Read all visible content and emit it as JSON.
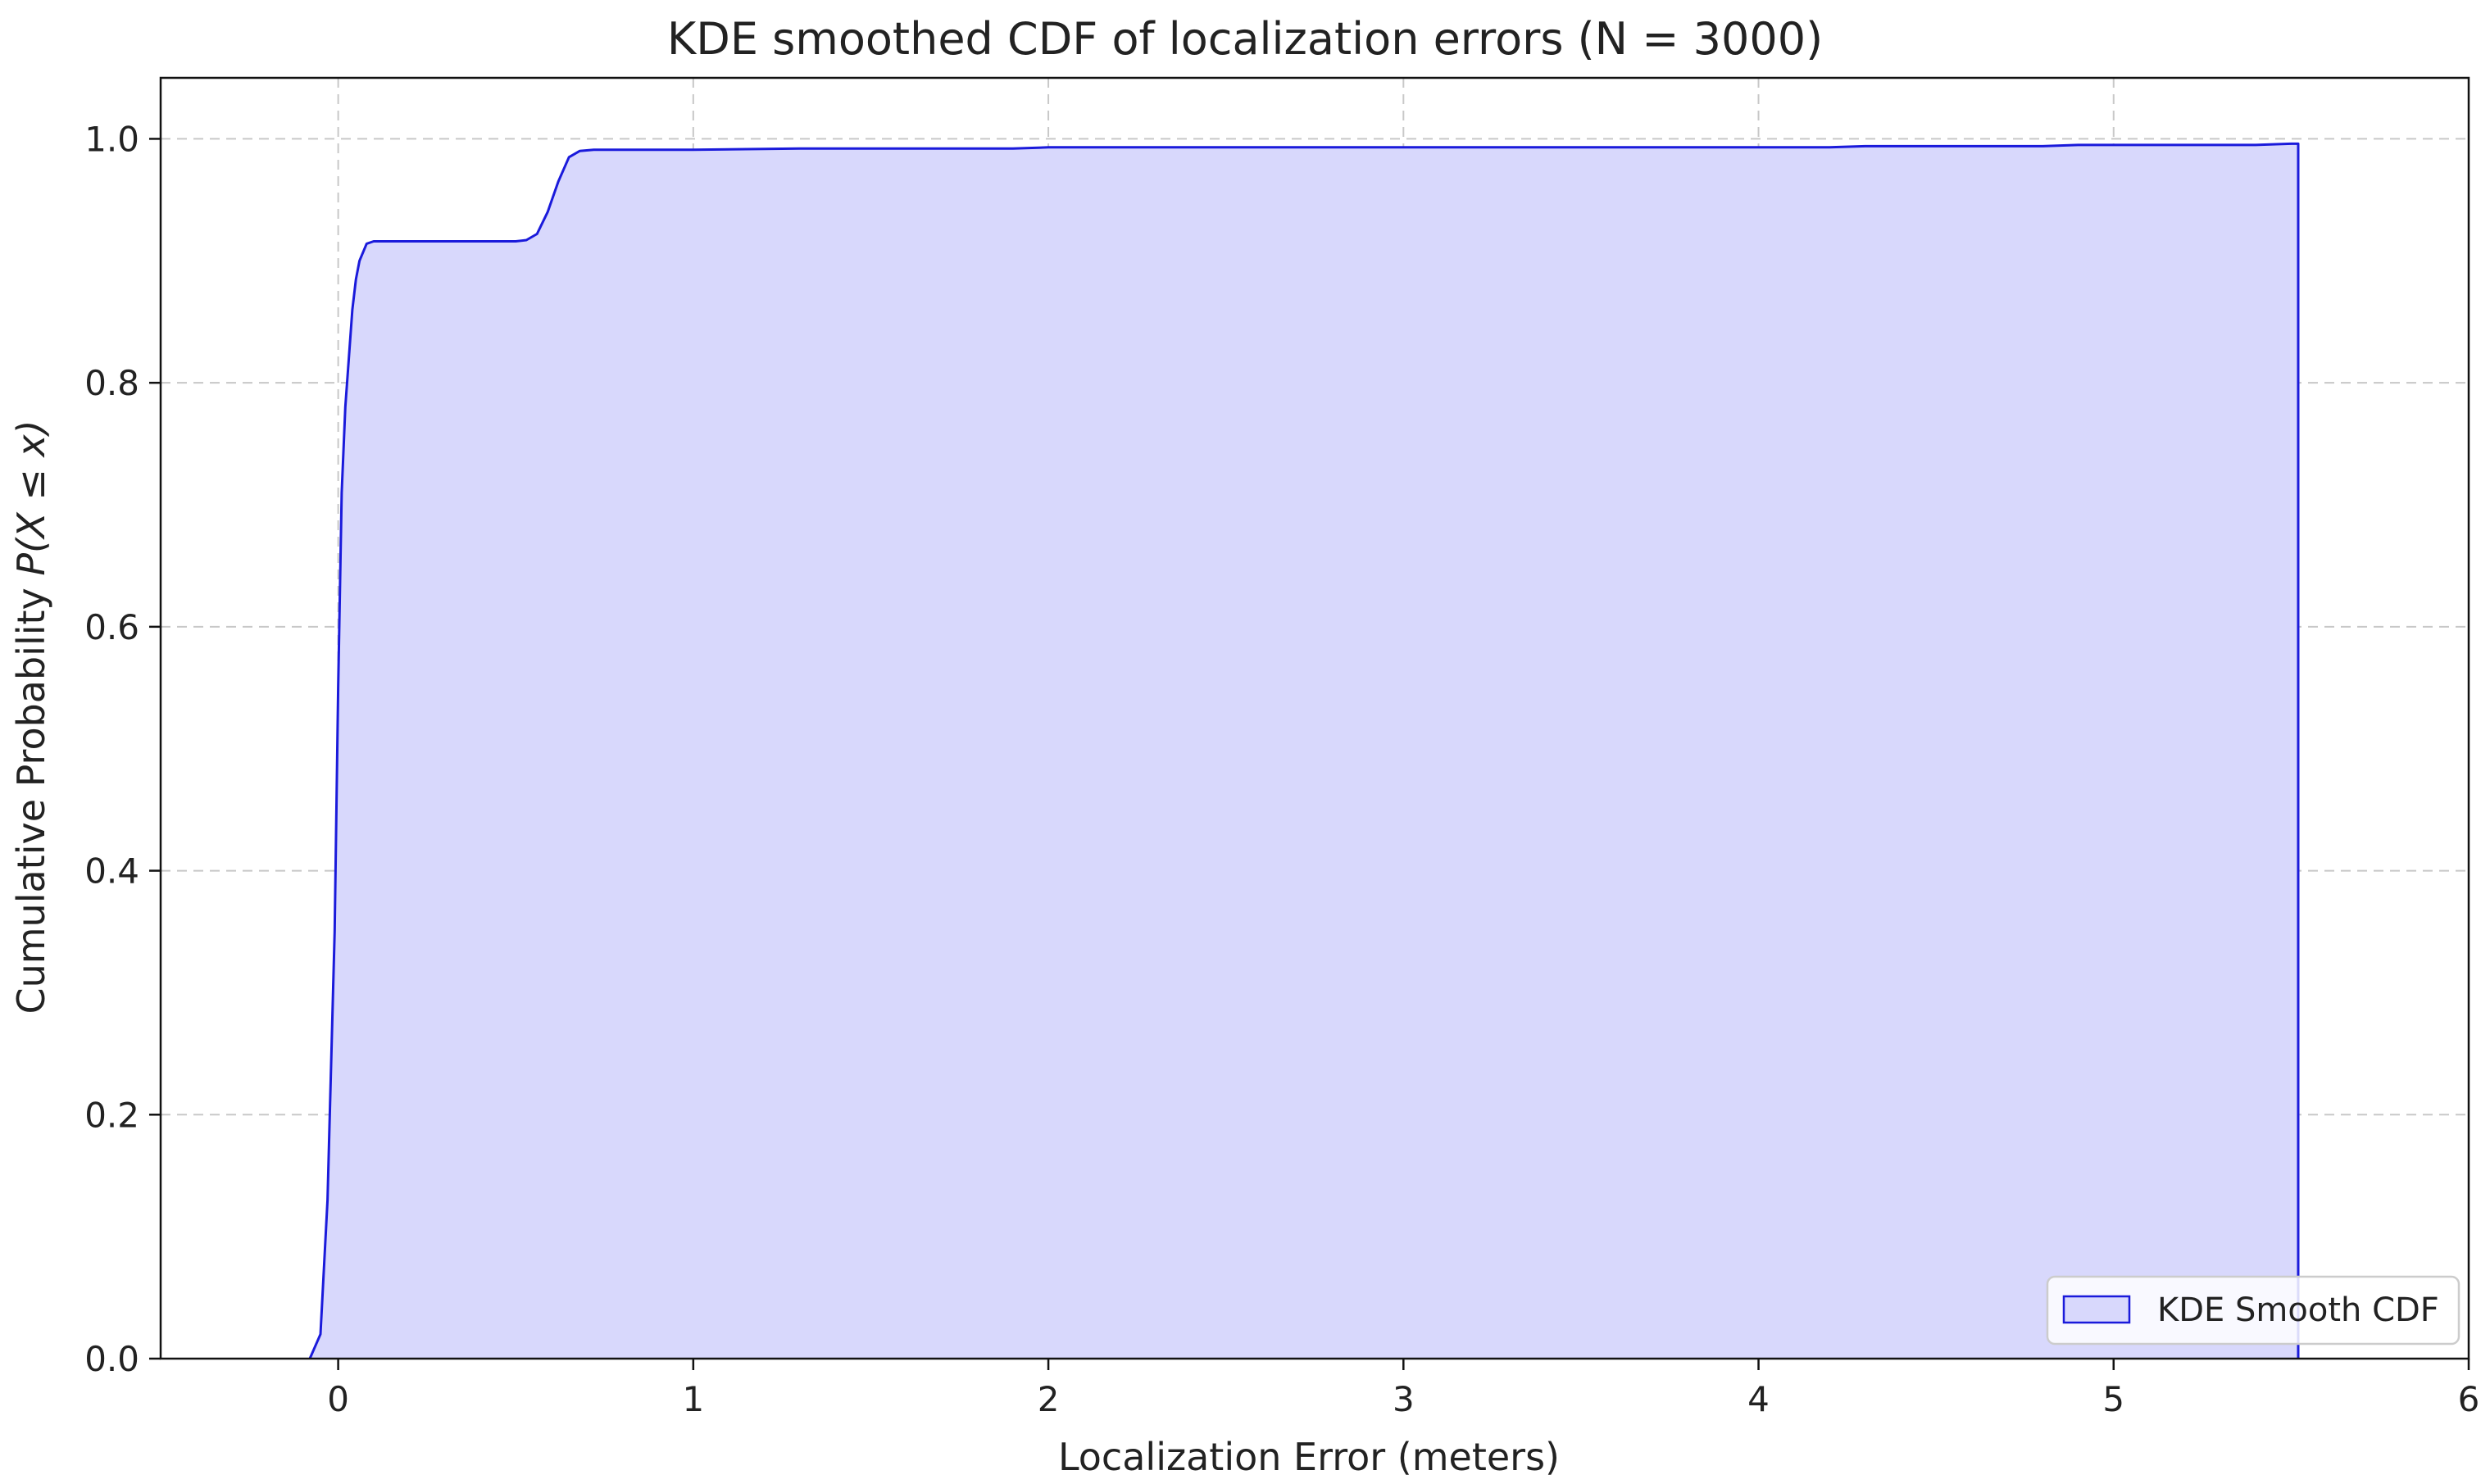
{
  "chart_data": {
    "type": "area",
    "title": "KDE smoothed CDF of localization errors (N = 3000)",
    "xlabel": "Localization Error (meters)",
    "ylabel": {
      "prefix": "Cumulative Probability ",
      "math": "P(X ≤ x)"
    },
    "xlim": [
      -0.5,
      6
    ],
    "ylim": [
      0,
      1.05
    ],
    "x_ticks": [
      0,
      1,
      2,
      3,
      4,
      5,
      6
    ],
    "y_ticks": [
      0.0,
      0.2,
      0.4,
      0.6,
      0.8,
      1.0
    ],
    "x_tick_labels": [
      "0",
      "1",
      "2",
      "3",
      "4",
      "5",
      "6"
    ],
    "y_tick_labels": [
      "0.0",
      "0.2",
      "0.4",
      "0.6",
      "0.8",
      "1.0"
    ],
    "grid": true,
    "legend_position": "lower-right",
    "series": [
      {
        "name": "KDE Smooth CDF",
        "line_color": "#1a1adb",
        "fill_color": "#d8d8fc",
        "x": [
          -0.08,
          -0.05,
          -0.03,
          -0.01,
          0.0,
          0.01,
          0.02,
          0.03,
          0.04,
          0.05,
          0.06,
          0.08,
          0.1,
          0.2,
          0.3,
          0.4,
          0.5,
          0.53,
          0.56,
          0.59,
          0.62,
          0.65,
          0.68,
          0.72,
          0.8,
          1.0,
          1.3,
          1.9,
          2.0,
          3.0,
          4.0,
          4.2,
          4.3,
          4.8,
          4.9,
          5.0,
          5.4,
          5.5,
          5.52
        ],
        "y": [
          0.0,
          0.02,
          0.13,
          0.35,
          0.55,
          0.71,
          0.78,
          0.82,
          0.86,
          0.885,
          0.9,
          0.914,
          0.916,
          0.916,
          0.916,
          0.916,
          0.916,
          0.917,
          0.922,
          0.94,
          0.965,
          0.985,
          0.99,
          0.991,
          0.991,
          0.991,
          0.992,
          0.992,
          0.993,
          0.993,
          0.993,
          0.993,
          0.994,
          0.994,
          0.995,
          0.995,
          0.995,
          0.996,
          0.996
        ]
      }
    ]
  }
}
